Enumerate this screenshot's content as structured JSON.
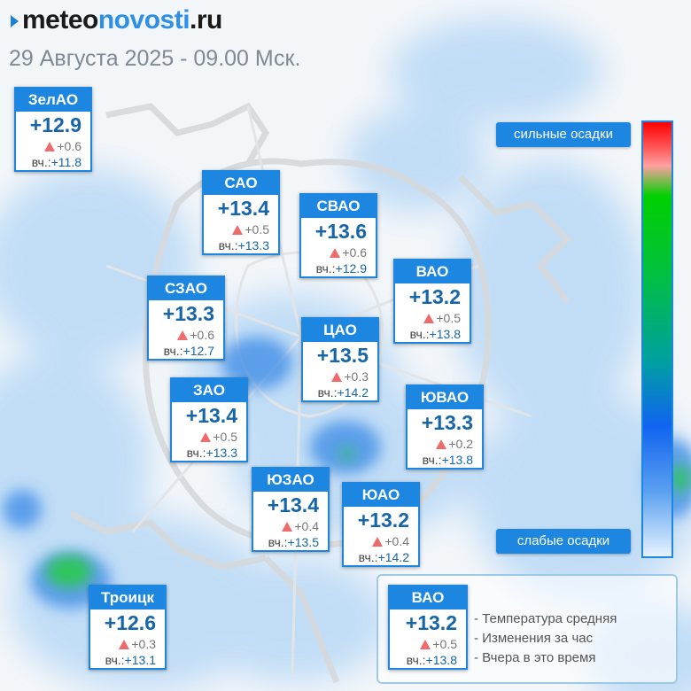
{
  "header": {
    "logo_part1": "meteo",
    "logo_part2": "novosti",
    "logo_part3": ".ru",
    "date": "29 Августа 2025 - 09.00 Мск."
  },
  "districts": {
    "zelao": {
      "name": "ЗелАО",
      "temp": "+12.9",
      "change": "+0.6",
      "yesterday_label": "вч.:",
      "yesterday": "+11.8"
    },
    "sao": {
      "name": "САО",
      "temp": "+13.4",
      "change": "+0.5",
      "yesterday_label": "вч.:",
      "yesterday": "+13.3"
    },
    "svao": {
      "name": "СВАО",
      "temp": "+13.6",
      "change": "+0.6",
      "yesterday_label": "вч.:",
      "yesterday": "+12.9"
    },
    "vao": {
      "name": "ВАО",
      "temp": "+13.2",
      "change": "+0.5",
      "yesterday_label": "вч.:",
      "yesterday": "+13.8"
    },
    "szao": {
      "name": "СЗАО",
      "temp": "+13.3",
      "change": "+0.6",
      "yesterday_label": "вч.:",
      "yesterday": "+12.7"
    },
    "cao": {
      "name": "ЦАО",
      "temp": "+13.5",
      "change": "+0.3",
      "yesterday_label": "вч.:",
      "yesterday": "+14.2"
    },
    "zao": {
      "name": "ЗАО",
      "temp": "+13.4",
      "change": "+0.5",
      "yesterday_label": "вч.:",
      "yesterday": "+13.3"
    },
    "yuvao": {
      "name": "ЮВАО",
      "temp": "+13.3",
      "change": "+0.2",
      "yesterday_label": "вч.:",
      "yesterday": "+13.8"
    },
    "yuzao": {
      "name": "ЮЗАО",
      "temp": "+13.4",
      "change": "+0.4",
      "yesterday_label": "вч.:",
      "yesterday": "+13.5"
    },
    "yuao": {
      "name": "ЮАО",
      "temp": "+13.2",
      "change": "+0.4",
      "yesterday_label": "вч.:",
      "yesterday": "+14.2"
    },
    "troitsk": {
      "name": "Троицк",
      "temp": "+12.6",
      "change": "+0.3",
      "yesterday_label": "вч.:",
      "yesterday": "+13.1"
    }
  },
  "scale": {
    "top_label": "сильные осадки",
    "bottom_label": "слабые осадки"
  },
  "legend": {
    "sample": {
      "name": "ВАО",
      "temp": "+13.2",
      "change": "+0.5",
      "yesterday_label": "вч.:",
      "yesterday": "+13.8"
    },
    "line1": "- Температура средняя",
    "line2": "- Изменения за час",
    "line3": "- Вчера в это время"
  },
  "colors": {
    "accent": "#1c86e0",
    "temp_text": "#1565a8",
    "increase_marker": "#ef6a6a",
    "precip_light": "#a8d0f5",
    "precip_medium": "#2a7fe0",
    "precip_heavy": "#1fc05a"
  }
}
